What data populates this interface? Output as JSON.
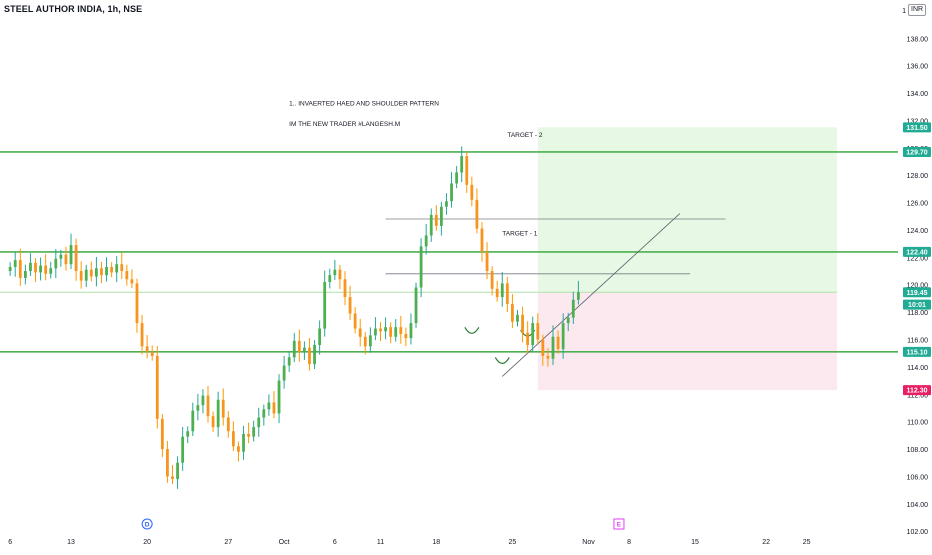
{
  "header": {
    "symbol_title": "STEEL AUTHOR INDIA, 1h, NSE",
    "currency": "INR"
  },
  "chart_data": {
    "type": "candlestick",
    "y_axis": {
      "min": 101.5,
      "max": 140.8,
      "ticks": [
        102,
        104,
        106,
        108,
        110,
        112,
        114,
        116,
        118,
        120,
        122,
        124,
        126,
        128,
        130,
        132,
        134,
        136,
        138
      ],
      "tick_labels": [
        "102.00",
        "104.00",
        "106.00",
        "108.00",
        "110.00",
        "112.00",
        "114.00",
        "116.00",
        "118.00",
        "120.00",
        "122.00",
        "124.00",
        "126.00",
        "128.00",
        "130.00",
        "132.00",
        "134.00",
        "136.00",
        "138.00"
      ],
      "top_label": "1"
    },
    "x_axis": {
      "min": -2,
      "max": 175,
      "ticks": [
        0,
        12,
        27,
        43,
        54,
        64,
        73,
        84,
        99,
        114,
        122,
        135,
        149,
        157,
        167
      ],
      "tick_labels": [
        "6",
        "13",
        "20",
        "27",
        "Oct",
        "6",
        "11",
        "18",
        "25",
        "Nov",
        "8",
        "15",
        "22",
        "25",
        ""
      ]
    },
    "horizontal_levels": [
      {
        "value": 129.7,
        "label": "129.70"
      },
      {
        "value": 122.4,
        "label": "122.40"
      },
      {
        "value": 115.1,
        "label": "115.10"
      }
    ],
    "price_badges": [
      {
        "value": 131.5,
        "label": "131.50",
        "color": "#22ab94"
      },
      {
        "value": 129.7,
        "label": "129.70",
        "color": "#22ab94"
      },
      {
        "value": 122.4,
        "label": "122.40",
        "color": "#22ab94"
      },
      {
        "value": 119.45,
        "label": "119.45",
        "color": "#22ab94"
      },
      {
        "value": 118.55,
        "label": "10:01",
        "color": "#22ab94"
      },
      {
        "value": 115.1,
        "label": "115.10",
        "color": "#22ab94"
      },
      {
        "value": 112.3,
        "label": "112.30",
        "color": "#e91e63"
      }
    ],
    "position": {
      "entry": 119.45,
      "target": 131.5,
      "stop": 112.3,
      "x_start": 104,
      "x_end": 163
    },
    "target_lines": [
      {
        "value": 124.8,
        "x_start": 74,
        "x_end": 141
      },
      {
        "value": 120.8,
        "x_start": 74,
        "x_end": 134
      }
    ],
    "trendline": {
      "x1": 97,
      "y1": 113.3,
      "x2": 132,
      "y2": 125.2
    },
    "events": [
      {
        "x": 27,
        "letter": "D",
        "color": "#2962ff"
      },
      {
        "x": 120,
        "letter": "E",
        "color": "#e040fb"
      }
    ],
    "annotations": [
      {
        "text": "1.. INVAERTED HAED AND SHOULDER PATTERN",
        "x": 55,
        "y": 133.1
      },
      {
        "text": "IM THE NEW TRADER #LANGESH.M",
        "x": 55,
        "y": 131.6
      },
      {
        "text": "TARGET - 2",
        "x": 98,
        "y": 130.8
      },
      {
        "text": "TARGET - 1",
        "x": 97,
        "y": 123.6
      }
    ],
    "series": [
      {
        "name": "",
        "closes": [
          121.3,
          121.8,
          120.5,
          121.0,
          121.6,
          120.9,
          121.4,
          120.8,
          121.2,
          121.9,
          122.2,
          121.5,
          122.9,
          121.0,
          120.3,
          121.1,
          120.6,
          121.2,
          120.7,
          121.3,
          120.9,
          121.5,
          121.0,
          120.4,
          120.1,
          117.2,
          115.5,
          115.1,
          114.8,
          110.2,
          108.0,
          106.0,
          105.8,
          107.0,
          108.9,
          109.3,
          110.8,
          111.2,
          111.9,
          110.4,
          109.6,
          111.6,
          110.3,
          109.3,
          108.2,
          107.8,
          109.1,
          108.9,
          109.6,
          110.3,
          110.9,
          111.4,
          110.6,
          113.0,
          114.1,
          114.7,
          115.9,
          115.1,
          115.4,
          114.2,
          115.6,
          116.8,
          120.2,
          120.7,
          121.1,
          120.4,
          119.1,
          117.9,
          116.8,
          116.2,
          115.5,
          116.3,
          116.8,
          116.6,
          116.9,
          116.2,
          116.9,
          116.4,
          116.1,
          117.2,
          119.8,
          122.8,
          123.6,
          125.1,
          124.3,
          125.7,
          126.1,
          127.4,
          128.2,
          129.4,
          127.3,
          126.2,
          124.1,
          122.4,
          121.0,
          119.7,
          119.1,
          120.1,
          118.6,
          117.3,
          117.8,
          116.5,
          115.6,
          117.2,
          116.0,
          114.8,
          114.6,
          116.2,
          115.3,
          117.2,
          117.6,
          118.9,
          119.45
        ]
      }
    ]
  }
}
